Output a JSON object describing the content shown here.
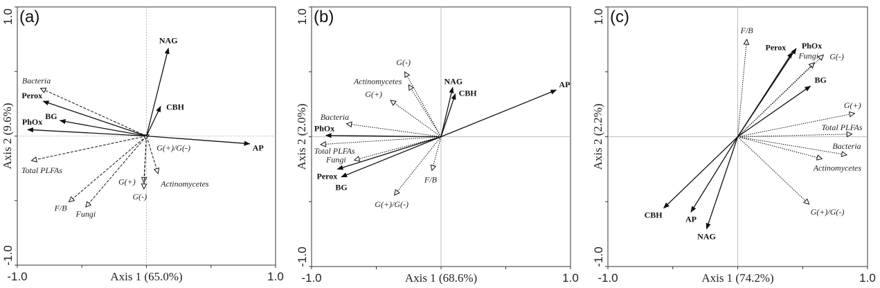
{
  "chart_data": [
    {
      "type": "scatter",
      "subtype": "biplot",
      "panel_label": "(a)",
      "xlabel": "Axis 1 (65.0%)",
      "ylabel": "Axis 2 (9.6%)",
      "xlim": [
        -1.0,
        1.0
      ],
      "ylim": [
        -1.0,
        1.0
      ],
      "xtick_labels": [
        "-1.0",
        "1.0"
      ],
      "ytick_labels": [
        "-1.0",
        "1.0"
      ],
      "plfa_line_style": "dashed",
      "enzymes": [
        {
          "name": "NAG",
          "x": 0.17,
          "y": 0.68
        },
        {
          "name": "CBH",
          "x": 0.11,
          "y": 0.23
        },
        {
          "name": "AP",
          "x": 0.8,
          "y": -0.06
        },
        {
          "name": "Perox",
          "x": -0.8,
          "y": 0.27
        },
        {
          "name": "BG",
          "x": -0.67,
          "y": 0.12
        },
        {
          "name": "PhOx",
          "x": -0.92,
          "y": 0.05
        }
      ],
      "plfas": [
        {
          "name": "Bacteria",
          "x": -0.82,
          "y": 0.37
        },
        {
          "name": "Total PLFAs",
          "x": -0.89,
          "y": -0.19
        },
        {
          "name": "F/B",
          "x": -0.6,
          "y": -0.51
        },
        {
          "name": "Fungi",
          "x": -0.47,
          "y": -0.55
        },
        {
          "name": "G(+)",
          "x": -0.02,
          "y": -0.36
        },
        {
          "name": "G(-)",
          "x": -0.02,
          "y": -0.41
        },
        {
          "name": "Actinomycetes",
          "x": 0.09,
          "y": -0.29
        },
        {
          "name": "G(+)/G(-)",
          "x": 0.02,
          "y": 0.01
        }
      ]
    },
    {
      "type": "scatter",
      "subtype": "biplot",
      "panel_label": "(b)",
      "xlabel": "Axis 1 (68.6%)",
      "ylabel": "Axis 2 (2.0%)",
      "xlim": [
        -1.0,
        1.0
      ],
      "ylim": [
        -1.0,
        1.0
      ],
      "xtick_labels": [
        "-1.0",
        "1.0"
      ],
      "ytick_labels": [
        "-1.0",
        "1.0"
      ],
      "plfa_line_style": "dotted",
      "enzymes": [
        {
          "name": "NAG",
          "x": 0.09,
          "y": 0.38
        },
        {
          "name": "CBH",
          "x": 0.11,
          "y": 0.33
        },
        {
          "name": "AP",
          "x": 0.89,
          "y": 0.36
        },
        {
          "name": "PhOx",
          "x": -0.89,
          "y": 0.01
        },
        {
          "name": "Perox",
          "x": -0.8,
          "y": -0.25
        },
        {
          "name": "BG",
          "x": -0.77,
          "y": -0.31
        }
      ],
      "plfas": [
        {
          "name": "G(-)",
          "x": -0.28,
          "y": 0.5
        },
        {
          "name": "Actinomycetes",
          "x": -0.25,
          "y": 0.4
        },
        {
          "name": "G(+)",
          "x": -0.39,
          "y": 0.28
        },
        {
          "name": "Bacteria",
          "x": -0.73,
          "y": 0.1
        },
        {
          "name": "Total PLFAs",
          "x": -0.93,
          "y": -0.06
        },
        {
          "name": "Fungi",
          "x": -0.67,
          "y": -0.18
        },
        {
          "name": "F/B",
          "x": -0.07,
          "y": -0.26
        },
        {
          "name": "G(+)/G(-)",
          "x": -0.36,
          "y": -0.45
        }
      ]
    },
    {
      "type": "scatter",
      "subtype": "biplot",
      "panel_label": "(c)",
      "xlabel": "Axis 1 (74.2%)",
      "ylabel": "Axis 2 (2.2%)",
      "xlim": [
        -1.0,
        1.0
      ],
      "ylim": [
        -1.0,
        1.0
      ],
      "xtick_labels": [
        "-1.0",
        "1.0"
      ],
      "ytick_labels": [
        "-1.0",
        "1.0"
      ],
      "plfa_line_style": "dotted",
      "enzymes": [
        {
          "name": "Perox",
          "x": 0.42,
          "y": 0.65
        },
        {
          "name": "PhOx",
          "x": 0.45,
          "y": 0.68
        },
        {
          "name": "BG",
          "x": 0.56,
          "y": 0.39
        },
        {
          "name": "CBH",
          "x": -0.57,
          "y": -0.55
        },
        {
          "name": "AP",
          "x": -0.36,
          "y": -0.58
        },
        {
          "name": "NAG",
          "x": -0.24,
          "y": -0.71
        }
      ],
      "plfas": [
        {
          "name": "F/B",
          "x": 0.07,
          "y": 0.75
        },
        {
          "name": "Fungi",
          "x": 0.59,
          "y": 0.57
        },
        {
          "name": "G(-)",
          "x": 0.66,
          "y": 0.63
        },
        {
          "name": "G(+)",
          "x": 0.9,
          "y": 0.18
        },
        {
          "name": "Total PLFAs",
          "x": 0.88,
          "y": 0.02
        },
        {
          "name": "Bacteria",
          "x": 0.84,
          "y": -0.14
        },
        {
          "name": "Actinomycetes",
          "x": 0.65,
          "y": -0.17
        },
        {
          "name": "G(+)/G(-)",
          "x": 0.55,
          "y": -0.52
        }
      ]
    }
  ]
}
